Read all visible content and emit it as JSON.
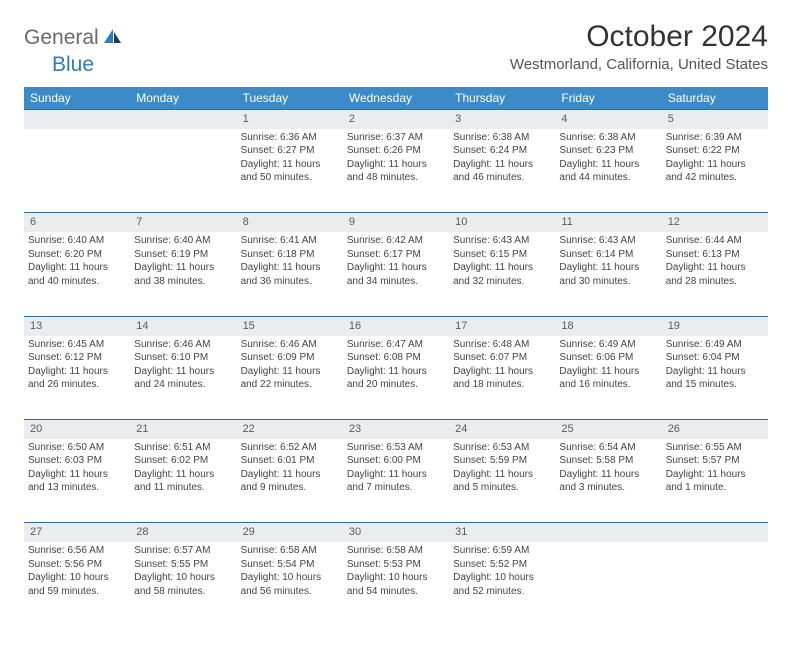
{
  "logo": {
    "part1": "General",
    "part2": "Blue"
  },
  "title": "October 2024",
  "location": "Westmorland, California, United States",
  "day_headers": [
    "Sunday",
    "Monday",
    "Tuesday",
    "Wednesday",
    "Thursday",
    "Friday",
    "Saturday"
  ],
  "colors": {
    "header_bg": "#3b8bc9",
    "header_text": "#ffffff",
    "daynum_bg": "#e9edf0",
    "row_border": "#2c6ea3",
    "logo_gray": "#6a6a6a",
    "logo_blue": "#2f7bbf"
  },
  "weeks": [
    {
      "nums": [
        "",
        "",
        "1",
        "2",
        "3",
        "4",
        "5"
      ],
      "cells": [
        [],
        [],
        [
          "Sunrise: 6:36 AM",
          "Sunset: 6:27 PM",
          "Daylight: 11 hours and 50 minutes."
        ],
        [
          "Sunrise: 6:37 AM",
          "Sunset: 6:26 PM",
          "Daylight: 11 hours and 48 minutes."
        ],
        [
          "Sunrise: 6:38 AM",
          "Sunset: 6:24 PM",
          "Daylight: 11 hours and 46 minutes."
        ],
        [
          "Sunrise: 6:38 AM",
          "Sunset: 6:23 PM",
          "Daylight: 11 hours and 44 minutes."
        ],
        [
          "Sunrise: 6:39 AM",
          "Sunset: 6:22 PM",
          "Daylight: 11 hours and 42 minutes."
        ]
      ]
    },
    {
      "nums": [
        "6",
        "7",
        "8",
        "9",
        "10",
        "11",
        "12"
      ],
      "cells": [
        [
          "Sunrise: 6:40 AM",
          "Sunset: 6:20 PM",
          "Daylight: 11 hours and 40 minutes."
        ],
        [
          "Sunrise: 6:40 AM",
          "Sunset: 6:19 PM",
          "Daylight: 11 hours and 38 minutes."
        ],
        [
          "Sunrise: 6:41 AM",
          "Sunset: 6:18 PM",
          "Daylight: 11 hours and 36 minutes."
        ],
        [
          "Sunrise: 6:42 AM",
          "Sunset: 6:17 PM",
          "Daylight: 11 hours and 34 minutes."
        ],
        [
          "Sunrise: 6:43 AM",
          "Sunset: 6:15 PM",
          "Daylight: 11 hours and 32 minutes."
        ],
        [
          "Sunrise: 6:43 AM",
          "Sunset: 6:14 PM",
          "Daylight: 11 hours and 30 minutes."
        ],
        [
          "Sunrise: 6:44 AM",
          "Sunset: 6:13 PM",
          "Daylight: 11 hours and 28 minutes."
        ]
      ]
    },
    {
      "nums": [
        "13",
        "14",
        "15",
        "16",
        "17",
        "18",
        "19"
      ],
      "cells": [
        [
          "Sunrise: 6:45 AM",
          "Sunset: 6:12 PM",
          "Daylight: 11 hours and 26 minutes."
        ],
        [
          "Sunrise: 6:46 AM",
          "Sunset: 6:10 PM",
          "Daylight: 11 hours and 24 minutes."
        ],
        [
          "Sunrise: 6:46 AM",
          "Sunset: 6:09 PM",
          "Daylight: 11 hours and 22 minutes."
        ],
        [
          "Sunrise: 6:47 AM",
          "Sunset: 6:08 PM",
          "Daylight: 11 hours and 20 minutes."
        ],
        [
          "Sunrise: 6:48 AM",
          "Sunset: 6:07 PM",
          "Daylight: 11 hours and 18 minutes."
        ],
        [
          "Sunrise: 6:49 AM",
          "Sunset: 6:06 PM",
          "Daylight: 11 hours and 16 minutes."
        ],
        [
          "Sunrise: 6:49 AM",
          "Sunset: 6:04 PM",
          "Daylight: 11 hours and 15 minutes."
        ]
      ]
    },
    {
      "nums": [
        "20",
        "21",
        "22",
        "23",
        "24",
        "25",
        "26"
      ],
      "cells": [
        [
          "Sunrise: 6:50 AM",
          "Sunset: 6:03 PM",
          "Daylight: 11 hours and 13 minutes."
        ],
        [
          "Sunrise: 6:51 AM",
          "Sunset: 6:02 PM",
          "Daylight: 11 hours and 11 minutes."
        ],
        [
          "Sunrise: 6:52 AM",
          "Sunset: 6:01 PM",
          "Daylight: 11 hours and 9 minutes."
        ],
        [
          "Sunrise: 6:53 AM",
          "Sunset: 6:00 PM",
          "Daylight: 11 hours and 7 minutes."
        ],
        [
          "Sunrise: 6:53 AM",
          "Sunset: 5:59 PM",
          "Daylight: 11 hours and 5 minutes."
        ],
        [
          "Sunrise: 6:54 AM",
          "Sunset: 5:58 PM",
          "Daylight: 11 hours and 3 minutes."
        ],
        [
          "Sunrise: 6:55 AM",
          "Sunset: 5:57 PM",
          "Daylight: 11 hours and 1 minute."
        ]
      ]
    },
    {
      "nums": [
        "27",
        "28",
        "29",
        "30",
        "31",
        "",
        ""
      ],
      "cells": [
        [
          "Sunrise: 6:56 AM",
          "Sunset: 5:56 PM",
          "Daylight: 10 hours and 59 minutes."
        ],
        [
          "Sunrise: 6:57 AM",
          "Sunset: 5:55 PM",
          "Daylight: 10 hours and 58 minutes."
        ],
        [
          "Sunrise: 6:58 AM",
          "Sunset: 5:54 PM",
          "Daylight: 10 hours and 56 minutes."
        ],
        [
          "Sunrise: 6:58 AM",
          "Sunset: 5:53 PM",
          "Daylight: 10 hours and 54 minutes."
        ],
        [
          "Sunrise: 6:59 AM",
          "Sunset: 5:52 PM",
          "Daylight: 10 hours and 52 minutes."
        ],
        [],
        []
      ]
    }
  ]
}
